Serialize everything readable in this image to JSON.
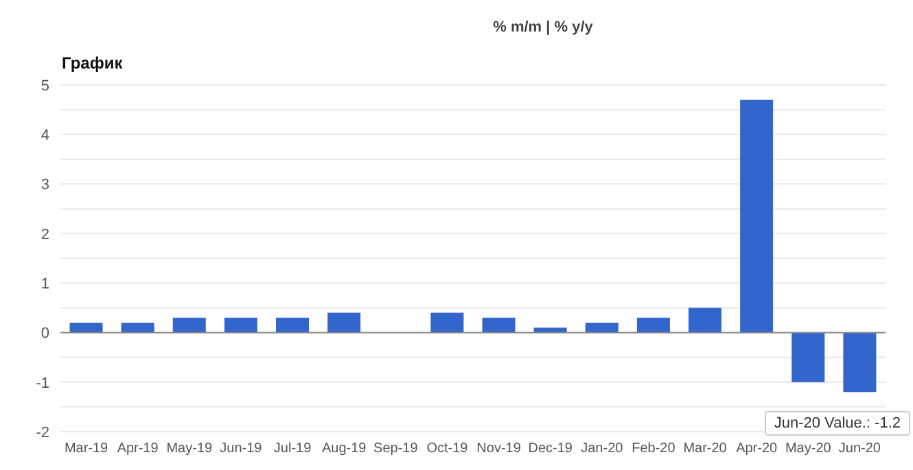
{
  "chart_data": {
    "type": "bar",
    "title": "График",
    "subtitle": "% m/m | % y/y",
    "categories": [
      "Mar-19",
      "Apr-19",
      "May-19",
      "Jun-19",
      "Jul-19",
      "Aug-19",
      "Sep-19",
      "Oct-19",
      "Nov-19",
      "Dec-19",
      "Jan-20",
      "Feb-20",
      "Mar-20",
      "Apr-20",
      "May-20",
      "Jun-20"
    ],
    "values": [
      0.2,
      0.2,
      0.3,
      0.3,
      0.3,
      0.4,
      null,
      0.4,
      0.3,
      0.1,
      0.2,
      0.3,
      0.5,
      4.7,
      -1.0,
      -1.2
    ],
    "color": "#3366cc",
    "ylim": [
      -2,
      5
    ],
    "yticks": [
      -2,
      {
        "value": -1.5,
        "label": null
      },
      -1,
      {
        "value": -0.5,
        "label": null
      },
      0,
      {
        "value": 0.5,
        "label": null
      },
      1,
      {
        "value": 1.5,
        "label": null
      },
      2,
      {
        "value": 2.5,
        "label": null
      },
      3,
      {
        "value": 3.5,
        "label": null
      },
      4,
      {
        "value": 4.5,
        "label": null
      },
      5
    ],
    "grid": "y",
    "annotations": [
      "Jun-20 Value.: -1.2"
    ]
  }
}
